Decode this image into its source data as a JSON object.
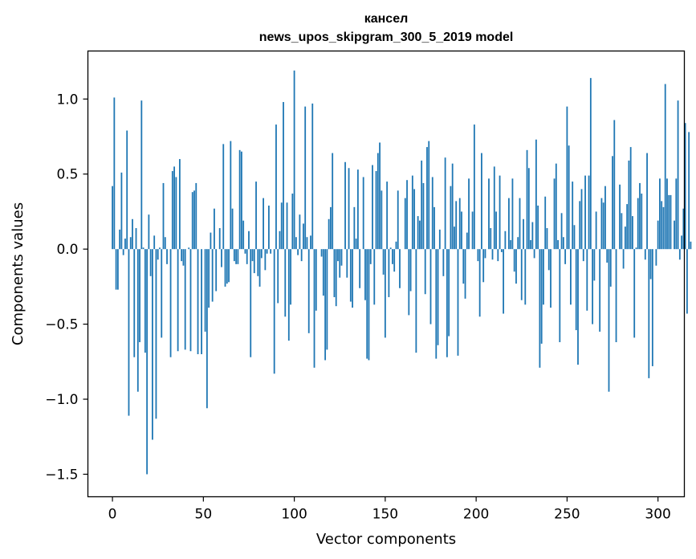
{
  "chart_data": {
    "type": "bar",
    "title_lines": [
      "кансел",
      "news_upos_skipgram_300_5_2019 model"
    ],
    "xlabel": "Vector components",
    "ylabel": "Components values",
    "xlim": [
      -13.5,
      314.5
    ],
    "ylim": [
      -1.65,
      1.32
    ],
    "xticks": [
      0,
      50,
      100,
      150,
      200,
      250,
      300
    ],
    "xtick_labels": [
      "0",
      "50",
      "100",
      "150",
      "200",
      "250",
      "300"
    ],
    "yticks": [
      -1.5,
      -1.0,
      -0.5,
      0.0,
      0.5,
      1.0
    ],
    "ytick_labels": [
      "−1.5",
      "−1.0",
      "−0.5",
      "0.0",
      "0.5",
      "1.0"
    ],
    "grid": false,
    "bar_color": "#1f77b4",
    "bar_width": 0.8,
    "x_start": 0,
    "values": [
      0.42,
      1.01,
      -0.27,
      -0.27,
      0.13,
      0.51,
      -0.04,
      0.07,
      0.79,
      -1.11,
      0.08,
      0.2,
      -0.72,
      0.14,
      -0.95,
      -0.62,
      0.99,
      0.01,
      -0.69,
      -1.5,
      0.23,
      -0.18,
      -1.27,
      0.09,
      -1.13,
      -0.07,
      0.01,
      -0.59,
      0.44,
      0.08,
      -0.1,
      0.0,
      -0.72,
      0.52,
      0.55,
      0.48,
      -0.68,
      0.6,
      -0.08,
      -0.11,
      -0.67,
      0.0,
      0.01,
      -0.68,
      0.38,
      0.39,
      0.44,
      -0.7,
      0.0,
      -0.7,
      0.0,
      -0.55,
      -1.06,
      -0.39,
      0.11,
      -0.35,
      0.27,
      -0.28,
      0.0,
      0.14,
      -0.12,
      0.7,
      -0.25,
      -0.23,
      -0.22,
      0.72,
      0.27,
      -0.08,
      -0.1,
      -0.1,
      0.66,
      0.65,
      0.19,
      -0.03,
      -0.1,
      0.12,
      -0.72,
      -0.08,
      -0.16,
      0.45,
      -0.18,
      -0.25,
      -0.06,
      0.34,
      -0.14,
      -0.03,
      0.29,
      -0.03,
      0.0,
      -0.83,
      0.83,
      -0.36,
      0.12,
      0.31,
      0.98,
      -0.45,
      0.31,
      -0.61,
      -0.37,
      0.37,
      1.19,
      0.08,
      -0.04,
      0.23,
      -0.08,
      0.17,
      0.95,
      0.08,
      -0.56,
      0.09,
      0.97,
      -0.79,
      -0.41,
      0.0,
      0.0,
      -0.05,
      -0.31,
      -0.74,
      -0.67,
      0.2,
      0.28,
      0.64,
      -0.32,
      -0.38,
      -0.08,
      -0.19,
      -0.11,
      0.0,
      0.58,
      -0.19,
      0.54,
      -0.35,
      -0.39,
      0.28,
      0.07,
      0.53,
      -0.26,
      0.0,
      0.48,
      -0.34,
      -0.73,
      -0.74,
      -0.1,
      0.56,
      -0.37,
      0.52,
      0.64,
      0.71,
      0.39,
      -0.17,
      -0.59,
      0.45,
      -0.32,
      0.01,
      -0.1,
      -0.15,
      0.05,
      0.39,
      -0.26,
      0.0,
      0.0,
      0.34,
      0.46,
      -0.44,
      -0.28,
      0.49,
      0.4,
      -0.69,
      0.22,
      0.19,
      0.59,
      0.44,
      -0.3,
      0.68,
      0.72,
      -0.5,
      0.48,
      0.28,
      -0.73,
      -0.64,
      0.13,
      0.0,
      -0.18,
      0.61,
      -0.72,
      -0.58,
      0.42,
      0.57,
      0.15,
      0.32,
      -0.71,
      0.34,
      0.25,
      -0.23,
      -0.33,
      0.11,
      0.47,
      0.0,
      0.25,
      0.83,
      0.0,
      -0.08,
      -0.45,
      0.64,
      -0.22,
      -0.06,
      0.0,
      0.47,
      0.14,
      -0.07,
      0.55,
      0.25,
      -0.08,
      0.49,
      -0.02,
      -0.43,
      0.12,
      0.0,
      0.34,
      0.06,
      0.47,
      -0.15,
      -0.23,
      0.08,
      0.34,
      -0.34,
      0.2,
      -0.37,
      0.66,
      0.54,
      0.06,
      0.18,
      -0.06,
      0.73,
      0.29,
      -0.79,
      -0.63,
      -0.37,
      0.35,
      0.14,
      -0.14,
      -0.39,
      0.0,
      0.47,
      0.57,
      0.06,
      -0.62,
      0.24,
      0.08,
      -0.1,
      0.95,
      0.69,
      -0.37,
      0.45,
      0.16,
      -0.54,
      -0.77,
      0.32,
      0.4,
      -0.08,
      0.49,
      -0.41,
      0.49,
      1.14,
      -0.5,
      -0.21,
      0.25,
      0.0,
      -0.55,
      0.34,
      0.31,
      0.42,
      -0.09,
      -0.95,
      -0.25,
      0.62,
      0.86,
      -0.62,
      0.0,
      0.43,
      0.24,
      -0.13,
      0.15,
      0.3,
      0.59,
      0.68,
      0.22,
      -0.59,
      0.01,
      0.34,
      0.44,
      0.37,
      0.0,
      -0.07,
      0.64,
      -0.86,
      -0.2,
      -0.78,
      0.0,
      -0.11,
      0.19,
      0.47,
      0.32,
      0.28,
      1.1,
      0.47,
      0.36,
      0.36,
      0.0,
      0.19,
      0.47,
      0.99,
      -0.07,
      0.09,
      0.27,
      0.84,
      -0.43,
      0.78,
      0.05
    ]
  }
}
